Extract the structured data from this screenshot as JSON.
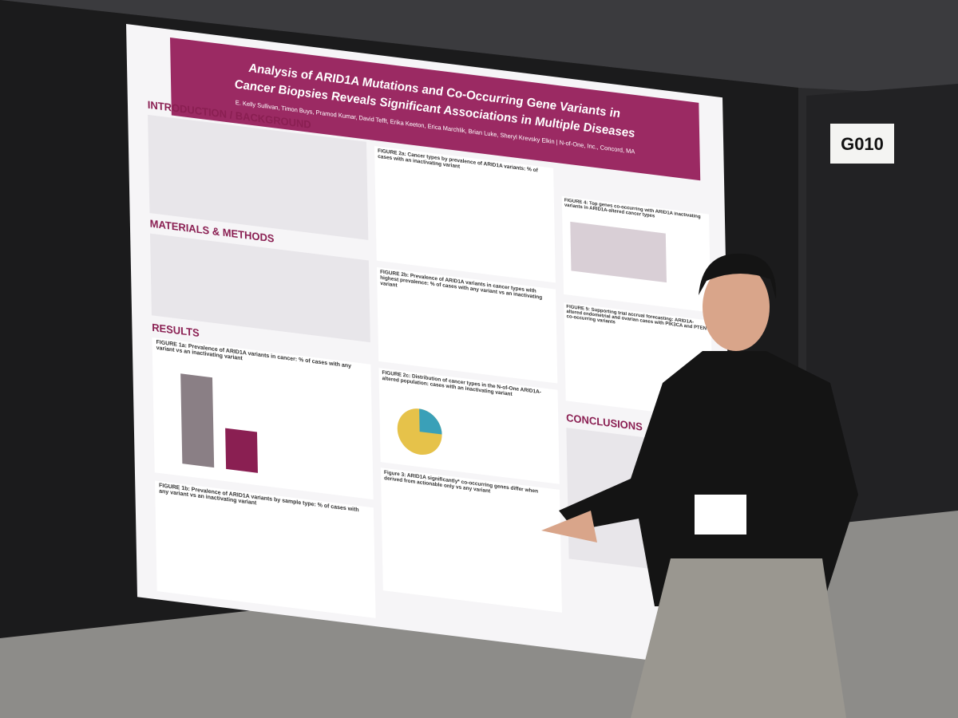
{
  "booth": "G010",
  "poster": {
    "title": [
      "Analysis of ARID1A Mutations and Co-Occurring Gene Variants in",
      "Cancer Biopsies Reveals Significant Associations in Multiple Diseases"
    ],
    "authors": "E. Kelly Sullivan, Timon Buys, Pramod Kumar, David Tefft, Erika Keeton, Erica Marchlik, Brian Luke, Sheryl Krevsky Elkin | N-of-One, Inc., Concord, MA",
    "sections": [
      "INTRODUCTION / BACKGROUND",
      "MATERIALS & METHODS",
      "RESULTS",
      "CONCLUSIONS"
    ],
    "figures": [
      "FIGURE 1a: Prevalence of ARID1A variants in cancer: % of cases with any variant vs an inactivating variant",
      "FIGURE 1b: Prevalence of ARID1A variants by sample type: % of cases with any variant vs an inactivating variant",
      "FIGURE 2a: Cancer types by prevalence of ARID1A variants: % of cases with an inactivating variant",
      "FIGURE 2b: Prevalence of ARID1A variants in cancer types with highest prevalence: % of cases with any variant vs an inactivating variant",
      "FIGURE 2c: Distribution of cancer types in the N-of-One ARID1A-altered population: cases with an inactivating variant",
      "Figure 3: ARID1A significantly* co-occurring genes differ when derived from actionable only vs any variant",
      "FIGURE 4: Top genes co-occurring with ARID1A inactivating variants in ARID1A-altered cancer types",
      "FIGURE 5: Supporting trial accrual forecasting: ARID1A-altered endometrial and ovarian cases with PIK3CA and PTEN co-occurring variants"
    ]
  }
}
